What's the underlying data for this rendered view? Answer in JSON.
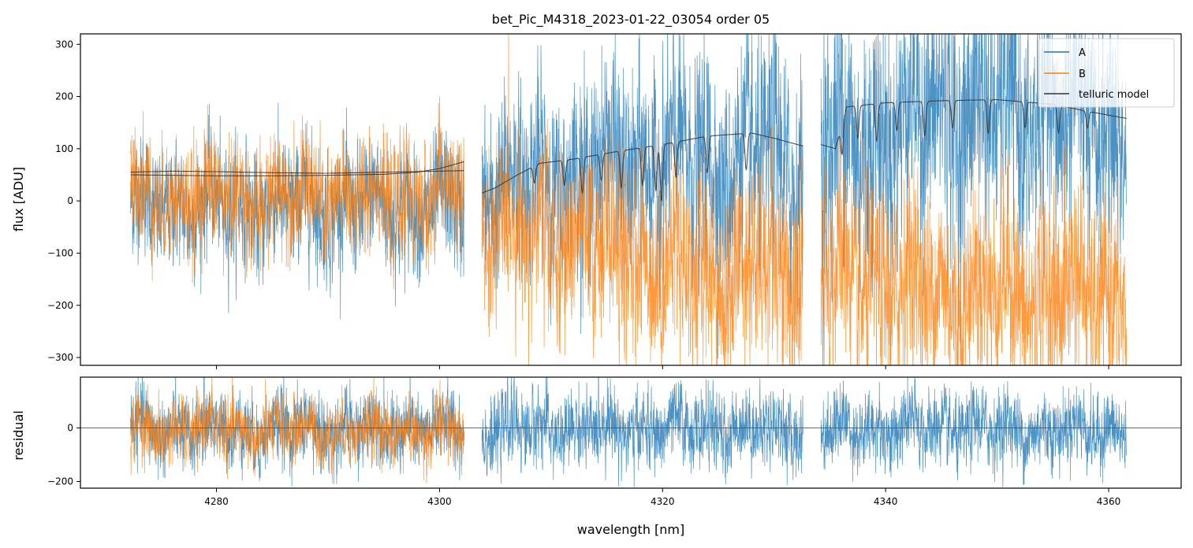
{
  "chart_data": [
    {
      "type": "line",
      "title": "bet_Pic_M4318_2023-01-22_03054  order 05",
      "xlabel": "",
      "ylabel": "flux [ADU]",
      "xlim": [
        4267.8,
        4366.5
      ],
      "ylim": [
        -315,
        320
      ],
      "yticks": [
        300,
        200,
        100,
        0,
        -100,
        -200,
        -300
      ],
      "xticks": [
        4280,
        4300,
        4320,
        4340,
        4360
      ],
      "xtick_labels_visible": false,
      "grid": false,
      "legend": {
        "position": "top-right",
        "entries": [
          "A",
          "B",
          "telluric model"
        ]
      },
      "segments": [
        [
          4272.3,
          4302.2
        ],
        [
          4303.8,
          4332.6
        ],
        [
          4334.2,
          4361.6
        ]
      ],
      "series": [
        {
          "name": "A",
          "color": "#1f77b4",
          "kind": "noisy-spectrum",
          "approx_mean": [
            [
              4272.3,
              -10
            ],
            [
              4302.2,
              -10
            ],
            [
              4303.8,
              20
            ],
            [
              4312,
              60
            ],
            [
              4320,
              80
            ],
            [
              4332.6,
              70
            ],
            [
              4334.2,
              100
            ],
            [
              4345,
              180
            ],
            [
              4361.6,
              140
            ]
          ],
          "approx_noise_std": [
            [
              4272.3,
              55
            ],
            [
              4302.2,
              60
            ],
            [
              4303.8,
              80
            ],
            [
              4332.6,
              110
            ],
            [
              4334.2,
              130
            ],
            [
              4361.6,
              110
            ]
          ]
        },
        {
          "name": "B",
          "color": "#ff7f0e",
          "kind": "noisy-spectrum",
          "approx_mean": [
            [
              4272.3,
              10
            ],
            [
              4302.2,
              10
            ],
            [
              4303.8,
              -40
            ],
            [
              4312,
              -80
            ],
            [
              4320,
              -120
            ],
            [
              4332.6,
              -140
            ],
            [
              4334.2,
              -150
            ],
            [
              4345,
              -170
            ],
            [
              4361.6,
              -180
            ]
          ],
          "approx_noise_std": [
            [
              4272.3,
              55
            ],
            [
              4302.2,
              55
            ],
            [
              4303.8,
              80
            ],
            [
              4332.6,
              100
            ],
            [
              4334.2,
              100
            ],
            [
              4361.6,
              90
            ]
          ]
        },
        {
          "name": "telluric model",
          "color": "#333333",
          "kind": "model",
          "points": [
            [
              [
                4272.3,
                50
              ],
              [
                4276,
                49
              ],
              [
                4280,
                48
              ],
              [
                4285,
                48
              ],
              [
                4290,
                49
              ],
              [
                4295,
                51
              ],
              [
                4298,
                55
              ],
              [
                4300,
                62
              ],
              [
                4302.2,
                75
              ]
            ],
            [
              [
                4272.3,
                55
              ],
              [
                4276,
                57
              ],
              [
                4280,
                56
              ],
              [
                4285,
                54
              ],
              [
                4290,
                53
              ],
              [
                4295,
                55
              ],
              [
                4300,
                57
              ],
              [
                4302.2,
                58
              ]
            ],
            [
              [
                4303.8,
                15
              ],
              [
                4305,
                25
              ],
              [
                4307,
                50
              ],
              [
                4309,
                72
              ],
              [
                4312,
                80
              ],
              [
                4316,
                95
              ],
              [
                4320,
                108
              ],
              [
                4324,
                124
              ],
              [
                4328,
                130
              ],
              [
                4330,
                120
              ],
              [
                4332.6,
                105
              ]
            ],
            [
              [
                4334.2,
                108
              ],
              [
                4335.5,
                100
              ],
              [
                4336.5,
                180
              ],
              [
                4340,
                188
              ],
              [
                4345,
                192
              ],
              [
                4350,
                194
              ],
              [
                4355,
                185
              ],
              [
                4358,
                172
              ],
              [
                4361.6,
                158
              ]
            ]
          ],
          "dips": [
            [
              4308.5,
              35
            ],
            [
              4311.2,
              30
            ],
            [
              4312.8,
              15
            ],
            [
              4314.5,
              40
            ],
            [
              4316.3,
              25
            ],
            [
              4318.2,
              30
            ],
            [
              4319.4,
              20
            ],
            [
              4319.9,
              0
            ],
            [
              4321.2,
              45
            ],
            [
              4324,
              55
            ],
            [
              4327.5,
              60
            ],
            [
              4336.1,
              90
            ],
            [
              4337.5,
              120
            ],
            [
              4339.2,
              115
            ],
            [
              4341,
              135
            ],
            [
              4343.5,
              125
            ],
            [
              4346,
              140
            ],
            [
              4349.2,
              130
            ],
            [
              4352.5,
              140
            ],
            [
              4355.5,
              130
            ],
            [
              4358.1,
              140
            ]
          ]
        }
      ]
    },
    {
      "type": "line",
      "title": "",
      "xlabel": "wavelength [nm]",
      "ylabel": "residual",
      "xlim": [
        4267.8,
        4366.5
      ],
      "ylim": [
        -225,
        190
      ],
      "yticks": [
        0,
        -200
      ],
      "xticks": [
        4280,
        4300,
        4320,
        4340,
        4360
      ],
      "xtick_labels": [
        "4280",
        "4300",
        "4320",
        "4340",
        "4360"
      ],
      "zero_line": true,
      "grid": false,
      "series": [
        {
          "name": "A",
          "color": "#1f77b4",
          "kind": "noisy-residual",
          "approx_noise_std": 70
        },
        {
          "name": "B",
          "color": "#ff7f0e",
          "kind": "noisy-residual",
          "approx_noise_std": 60,
          "x_range": [
            4272.3,
            4302.2
          ]
        }
      ]
    }
  ]
}
